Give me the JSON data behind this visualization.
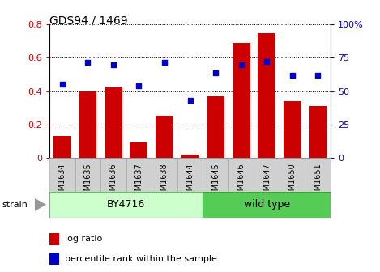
{
  "title": "GDS94 / 1469",
  "samples": [
    "GSM1634",
    "GSM1635",
    "GSM1636",
    "GSM1637",
    "GSM1638",
    "GSM1644",
    "GSM1645",
    "GSM1646",
    "GSM1647",
    "GSM1650",
    "GSM1651"
  ],
  "log_ratio": [
    0.13,
    0.4,
    0.42,
    0.09,
    0.25,
    0.02,
    0.37,
    0.69,
    0.75,
    0.34,
    0.31
  ],
  "percentile_rank": [
    0.555,
    0.715,
    0.7,
    0.54,
    0.715,
    0.43,
    0.635,
    0.7,
    0.72,
    0.62,
    0.62
  ],
  "bar_color": "#cc0000",
  "dot_color": "#0000cc",
  "strain_labels": [
    "BY4716",
    "wild type"
  ],
  "strain_bg_light": "#ccffcc",
  "strain_bg_dark": "#55cc55",
  "ylim_left": [
    0,
    0.8
  ],
  "ylim_right": [
    0.0,
    1.0
  ],
  "yticks_left": [
    0.0,
    0.2,
    0.4,
    0.6,
    0.8
  ],
  "yticks_right": [
    0.0,
    0.25,
    0.5,
    0.75,
    1.0
  ],
  "ytick_labels_left": [
    "0",
    "0.2",
    "0.4",
    "0.6",
    "0.8"
  ],
  "ytick_labels_right": [
    "0",
    "25",
    "50",
    "75",
    "100%"
  ],
  "legend_log_ratio": "log ratio",
  "legend_percentile": "percentile rank within the sample",
  "strain_text": "strain",
  "background_color": "#ffffff",
  "xtick_box_color": "#d0d0d0",
  "xtick_box_edge": "#aaaaaa"
}
